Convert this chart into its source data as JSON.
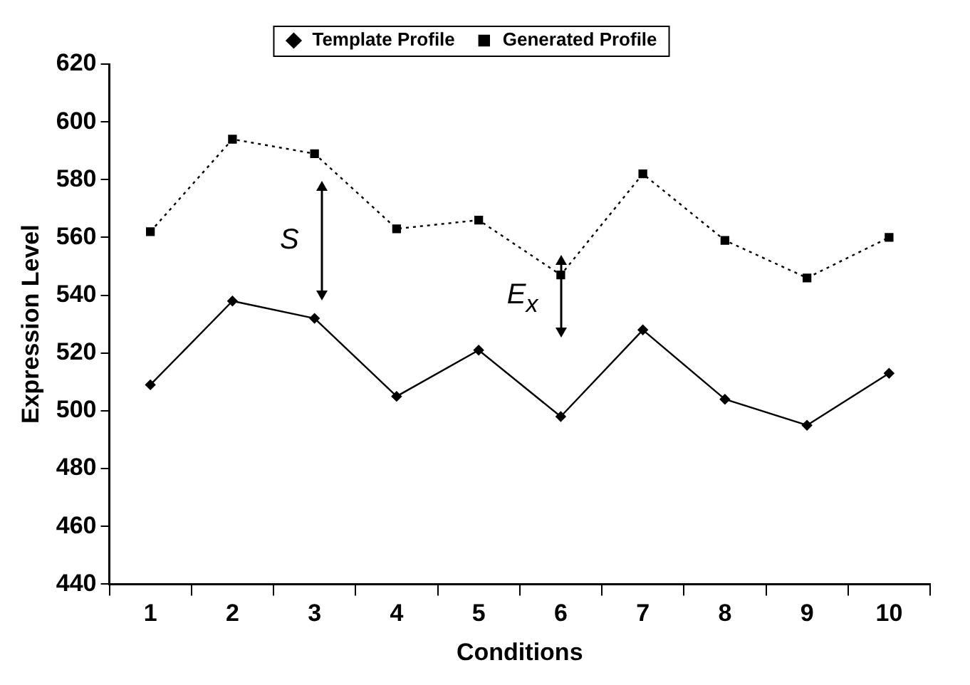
{
  "chart_data": {
    "type": "line",
    "xlabel": "Conditions",
    "ylabel": "Expression Level",
    "categories": [
      "1",
      "2",
      "3",
      "4",
      "5",
      "6",
      "7",
      "8",
      "9",
      "10"
    ],
    "series": [
      {
        "name": "Template Profile",
        "color": "#000000",
        "marker": "diamond",
        "line_style": "solid",
        "values": [
          509,
          538,
          532,
          505,
          521,
          498,
          528,
          504,
          495,
          513
        ]
      },
      {
        "name": "Generated Profile",
        "color": "#000000",
        "marker": "square",
        "line_style": "dotted",
        "values": [
          562,
          594,
          589,
          563,
          566,
          547,
          582,
          559,
          546,
          560
        ]
      }
    ],
    "ylim": [
      440,
      620
    ],
    "yticks": [
      440,
      460,
      480,
      500,
      520,
      540,
      560,
      580,
      600,
      620
    ],
    "grid": false,
    "legend": "top",
    "annotations": [
      "S",
      "E$_{x}$"
    ]
  }
}
